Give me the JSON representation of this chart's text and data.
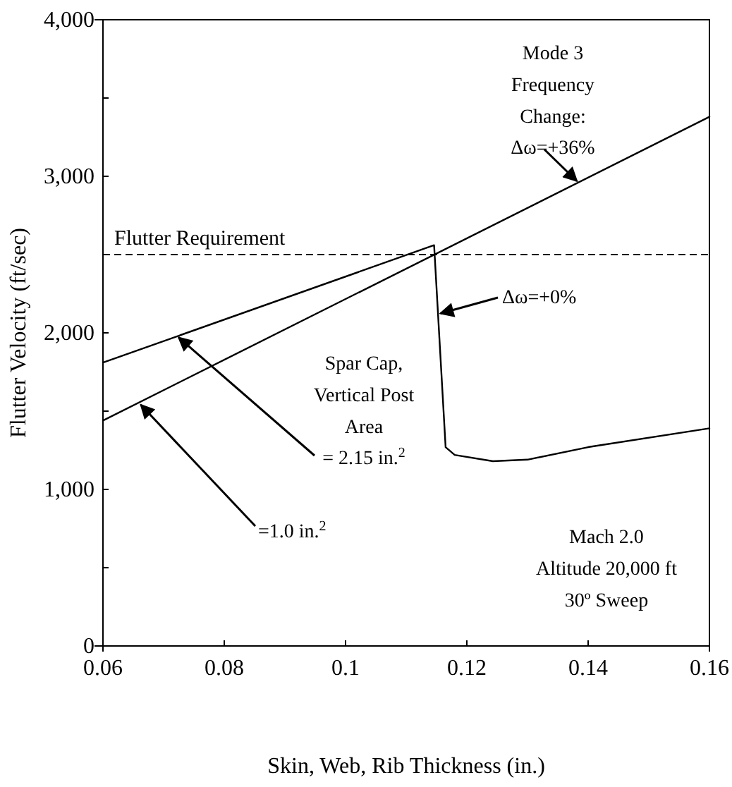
{
  "chart_data": {
    "type": "line",
    "xlabel": "Skin, Web, Rib Thickness (in.)",
    "ylabel": "Flutter Velocity (ft/sec)",
    "xlim": [
      0.06,
      0.16
    ],
    "xticks": [
      0.06,
      0.08,
      0.1,
      0.12,
      0.14,
      0.16
    ],
    "ylim": [
      0,
      4000
    ],
    "yticks": [
      0,
      {
        "value": 500,
        "label": null
      },
      {
        "value": 1000,
        "label": "1,000"
      },
      {
        "value": 1500,
        "label": null
      },
      {
        "value": 2000,
        "label": "2,000"
      },
      {
        "value": 2500,
        "label": null
      },
      {
        "value": 3000,
        "label": "3,000"
      },
      {
        "value": 3500,
        "label": null
      },
      {
        "value": 4000,
        "label": "4,000"
      }
    ],
    "grid": false,
    "marker": "none",
    "line_style": "solid",
    "series": [
      {
        "color": "#000000",
        "x": [
          0.06,
          0.16
        ],
        "values": [
          1440,
          3380
        ]
      },
      {
        "color": "#000000",
        "x": [
          0.06,
          0.1146,
          0.1165,
          0.118,
          0.1243,
          0.13,
          0.14,
          0.16
        ],
        "values": [
          1810,
          2560,
          1270,
          1220,
          1180,
          1190,
          1270,
          1390
        ]
      }
    ],
    "ref_lines": [
      {
        "axis": "y",
        "value": 2500,
        "label": "Flutter Requirement",
        "color": "#000000",
        "line_style": "dashed"
      }
    ],
    "annotations": [
      {
        "text": "Mode 3\nFrequency\nChange:\nΔω=+36%",
        "x": 0.1384,
        "y": 2960
      },
      {
        "text": "Δω=+0%",
        "x": 0.1153,
        "y": 2120
      },
      {
        "text": "Spar Cap,\nVertical Post\nArea\n= 2.15 in.$^{2}$",
        "x": 0.0722,
        "y": 1980
      },
      {
        "text": "=1.0 in.$^{2}$",
        "x": 0.066,
        "y": 1550
      },
      "Mach 2.0\nAltitude 20,000 ft\n30º Sweep"
    ]
  }
}
